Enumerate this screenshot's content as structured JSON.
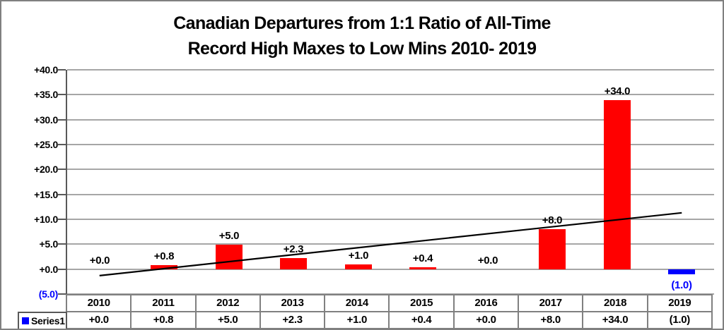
{
  "chart_data": {
    "type": "bar",
    "title": "Canadian Departures from 1:1 Ratio of All-Time Record High Maxes to Low Mins 2010- 2019",
    "title_line1": "Canadian Departures from 1:1 Ratio of All-Time",
    "title_line2": "Record High Maxes to Low Mins 2010- 2019",
    "categories": [
      "2010",
      "2011",
      "2012",
      "2013",
      "2014",
      "2015",
      "2016",
      "2017",
      "2018",
      "2019"
    ],
    "series": [
      {
        "name": "Series1",
        "values": [
          0.0,
          0.8,
          5.0,
          2.3,
          1.0,
          0.4,
          0.0,
          8.0,
          34.0,
          -1.0
        ]
      }
    ],
    "point_labels": [
      "+0.0",
      "+0.8",
      "+5.0",
      "+2.3",
      "+1.0",
      "+0.4",
      "+0.0",
      "+8.0",
      "+34.0",
      "(1.0)"
    ],
    "y_ticks": [
      {
        "label": "+40.0",
        "value": 40
      },
      {
        "label": "+35.0",
        "value": 35
      },
      {
        "label": "+30.0",
        "value": 30
      },
      {
        "label": "+25.0",
        "value": 25
      },
      {
        "label": "+20.0",
        "value": 20
      },
      {
        "label": "+15.0",
        "value": 15
      },
      {
        "label": "+10.0",
        "value": 10
      },
      {
        "label": "+5.0",
        "value": 5
      },
      {
        "label": "+0.0",
        "value": 0
      },
      {
        "label": "(5.0)",
        "value": -5
      }
    ],
    "ylim": [
      -5,
      40
    ],
    "xlabel": "",
    "ylabel": "",
    "grid": true,
    "legend": {
      "label": "Series1",
      "position": "bottom-left-table"
    },
    "trendline": {
      "type": "linear",
      "start_value": -1.3,
      "end_value": 11.3
    },
    "data_table": {
      "header_row_source": "categories",
      "value_row_source": "point_labels"
    },
    "colors": {
      "bar_positive": "#ff0000",
      "bar_negative": "#0000ff",
      "negative_text": "#0000ff",
      "positive_text": "#000000",
      "gridline": "#a6a6a6",
      "axis": "#595959",
      "trendline": "#000000",
      "table_border": "#808080"
    }
  }
}
